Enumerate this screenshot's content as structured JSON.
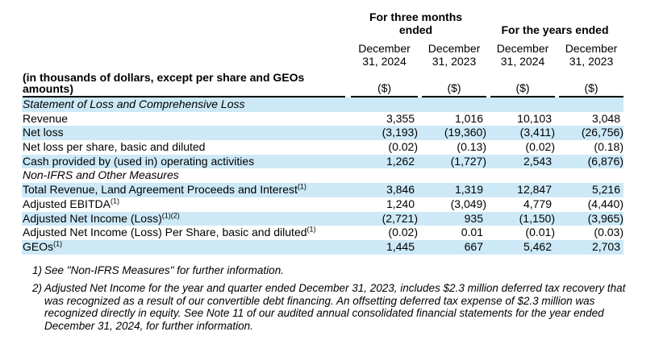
{
  "table": {
    "header": {
      "group_three_months": "For three months ended",
      "group_years": "For the years ended",
      "columns": [
        "December 31, 2024",
        "December 31, 2023",
        "December 31, 2024",
        "December 31, 2023"
      ],
      "row_label_note": "(in thousands of dollars, except per share and GEOs amounts)",
      "units": [
        "($)",
        "($)",
        "($)",
        "($)"
      ]
    },
    "rows": [
      {
        "type": "section",
        "label": "Statement of Loss and Comprehensive Loss"
      },
      {
        "type": "data",
        "label": "Revenue",
        "values": [
          "3,355",
          "1,016",
          "10,103",
          "3,048"
        ]
      },
      {
        "type": "data",
        "label": "Net loss",
        "values": [
          "(3,193)",
          "(19,360)",
          "(3,411)",
          "(26,756)"
        ]
      },
      {
        "type": "data",
        "label": "Net loss per share, basic and diluted",
        "values": [
          "(0.02)",
          "(0.13)",
          "(0.02)",
          "(0.18)"
        ]
      },
      {
        "type": "data",
        "label": "Cash provided by (used in) operating activities",
        "values": [
          "1,262",
          "(1,727)",
          "2,543",
          "(6,876)"
        ]
      },
      {
        "type": "section",
        "label": "Non-IFRS and Other Measures"
      },
      {
        "type": "data",
        "label": "Total Revenue, Land Agreement Proceeds and Interest",
        "sup": "(1)",
        "values": [
          "3,846",
          "1,319",
          "12,847",
          "5,216"
        ]
      },
      {
        "type": "data",
        "label": "Adjusted EBITDA",
        "sup": "(1)",
        "values": [
          "1,240",
          "(3,049)",
          "4,779",
          "(4,440)"
        ]
      },
      {
        "type": "data",
        "label": "Adjusted Net Income (Loss)",
        "sup": "(1)(2)",
        "values": [
          "(2,721)",
          "935",
          "(1,150)",
          "(3,965)"
        ]
      },
      {
        "type": "data",
        "label": "Adjusted Net Income (Loss) Per Share, basic and diluted",
        "sup": "(1)",
        "values": [
          "(0.02)",
          "0.01",
          "(0.01)",
          "(0.03)"
        ]
      },
      {
        "type": "data",
        "label": "GEOs",
        "sup": "(1)",
        "values": [
          "1,445",
          "667",
          "5,462",
          "2,703"
        ]
      }
    ]
  },
  "footnotes": [
    {
      "num": "1)",
      "text": "See \"Non-IFRS Measures\" for further information."
    },
    {
      "num": "2)",
      "text": "Adjusted Net Income for the year and quarter ended December 31, 2023, includes $2.3 million deferred tax recovery that was recognized as a result of our convertible debt financing. An offsetting deferred tax expense of $2.3 million was recognized directly in equity. See Note 11 of our audited annual consolidated financial statements for the year ended December 31, 2024, for further information."
    }
  ],
  "colors": {
    "row_highlight": "#cde9f7",
    "rule": "#000000",
    "text": "#000000"
  }
}
